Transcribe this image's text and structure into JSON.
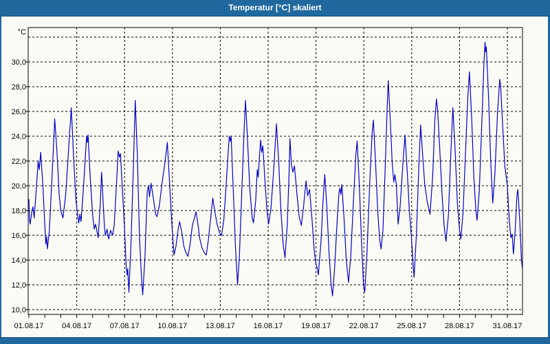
{
  "window": {
    "title": "Temperatur [°C] skaliert",
    "titlebar_color": "#1e689e",
    "background_color": "#fbfbf6"
  },
  "chart_data": {
    "type": "line",
    "title": "Temperatur [°C] skaliert",
    "grid": true,
    "legend_position": "none",
    "y_axis": {
      "unit_label": "°C",
      "min": 10,
      "max": 32,
      "tick_step": 2,
      "ticks": [
        {
          "value": 10,
          "label": "10,0"
        },
        {
          "value": 12,
          "label": "12,0"
        },
        {
          "value": 14,
          "label": "14,0"
        },
        {
          "value": 16,
          "label": "16,0"
        },
        {
          "value": 18,
          "label": "18,0"
        },
        {
          "value": 20,
          "label": "20,0"
        },
        {
          "value": 22,
          "label": "22,0"
        },
        {
          "value": 24,
          "label": "24,0"
        },
        {
          "value": 26,
          "label": "26,0"
        },
        {
          "value": 28,
          "label": "28,0"
        },
        {
          "value": 30,
          "label": "30,0"
        }
      ],
      "unlabeled_gridline": 32
    },
    "x_axis": {
      "unit": "date",
      "range_days": [
        1,
        32
      ],
      "minor_tick_every_days": 1,
      "ticks": [
        {
          "day": 1,
          "label": "01.08.17"
        },
        {
          "day": 4,
          "label": "04.08.17"
        },
        {
          "day": 7,
          "label": "07.08.17"
        },
        {
          "day": 10,
          "label": "10.08.17"
        },
        {
          "day": 13,
          "label": "13.08.17"
        },
        {
          "day": 16,
          "label": "16.08.17"
        },
        {
          "day": 19,
          "label": "19.08.17"
        },
        {
          "day": 22,
          "label": "22.08.17"
        },
        {
          "day": 25,
          "label": "25.08.17"
        },
        {
          "day": 28,
          "label": "28.08.17"
        },
        {
          "day": 31,
          "label": "31.08.17"
        }
      ]
    },
    "series": [
      {
        "name": "Temperatur",
        "color": "#0000c8",
        "points": [
          [
            1.0,
            18.9
          ],
          [
            1.04,
            17.2
          ],
          [
            1.08,
            16.9
          ],
          [
            1.18,
            17.9
          ],
          [
            1.26,
            18.3
          ],
          [
            1.33,
            17.4
          ],
          [
            1.45,
            19.4
          ],
          [
            1.58,
            22.0
          ],
          [
            1.65,
            21.3
          ],
          [
            1.74,
            22.7
          ],
          [
            1.88,
            20.0
          ],
          [
            2.0,
            16.8
          ],
          [
            2.06,
            15.3
          ],
          [
            2.11,
            15.9
          ],
          [
            2.16,
            14.9
          ],
          [
            2.28,
            16.3
          ],
          [
            2.45,
            20.6
          ],
          [
            2.62,
            25.4
          ],
          [
            2.76,
            22.8
          ],
          [
            2.9,
            19.3
          ],
          [
            3.0,
            18.0
          ],
          [
            3.07,
            17.7
          ],
          [
            3.14,
            17.4
          ],
          [
            3.3,
            19.2
          ],
          [
            3.46,
            22.3
          ],
          [
            3.55,
            24.3
          ],
          [
            3.6,
            25.0
          ],
          [
            3.66,
            26.3
          ],
          [
            3.8,
            22.4
          ],
          [
            3.95,
            18.9
          ],
          [
            4.07,
            17.5
          ],
          [
            4.13,
            17.0
          ],
          [
            4.2,
            17.7
          ],
          [
            4.27,
            17.1
          ],
          [
            4.42,
            19.8
          ],
          [
            4.55,
            22.6
          ],
          [
            4.62,
            24.0
          ],
          [
            4.67,
            23.5
          ],
          [
            4.71,
            24.1
          ],
          [
            4.85,
            20.6
          ],
          [
            5.0,
            17.6
          ],
          [
            5.1,
            16.5
          ],
          [
            5.18,
            16.9
          ],
          [
            5.27,
            16.3
          ],
          [
            5.35,
            15.8
          ],
          [
            5.48,
            18.6
          ],
          [
            5.56,
            21.1
          ],
          [
            5.65,
            18.8
          ],
          [
            5.74,
            16.6
          ],
          [
            5.8,
            16.0
          ],
          [
            5.9,
            16.5
          ],
          [
            6.0,
            15.7
          ],
          [
            6.12,
            16.4
          ],
          [
            6.25,
            16.0
          ],
          [
            6.35,
            16.8
          ],
          [
            6.48,
            19.8
          ],
          [
            6.6,
            22.8
          ],
          [
            6.68,
            22.3
          ],
          [
            6.74,
            22.6
          ],
          [
            6.85,
            20.0
          ],
          [
            7.0,
            16.5
          ],
          [
            7.1,
            13.5
          ],
          [
            7.16,
            12.8
          ],
          [
            7.2,
            13.3
          ],
          [
            7.27,
            11.4
          ],
          [
            7.4,
            15.3
          ],
          [
            7.55,
            21.5
          ],
          [
            7.67,
            26.9
          ],
          [
            7.8,
            22.5
          ],
          [
            7.93,
            16.0
          ],
          [
            8.05,
            12.8
          ],
          [
            8.14,
            11.2
          ],
          [
            8.28,
            14.3
          ],
          [
            8.42,
            19.5
          ],
          [
            8.5,
            20.0
          ],
          [
            8.56,
            19.1
          ],
          [
            8.66,
            20.2
          ],
          [
            8.8,
            19.0
          ],
          [
            8.95,
            17.7
          ],
          [
            9.04,
            17.5
          ],
          [
            9.18,
            18.4
          ],
          [
            9.35,
            20.2
          ],
          [
            9.52,
            21.8
          ],
          [
            9.68,
            23.5
          ],
          [
            9.82,
            20.3
          ],
          [
            9.95,
            17.2
          ],
          [
            10.1,
            14.4
          ],
          [
            10.22,
            15.1
          ],
          [
            10.35,
            16.4
          ],
          [
            10.45,
            17.1
          ],
          [
            10.58,
            16.3
          ],
          [
            10.72,
            15.1
          ],
          [
            10.85,
            14.6
          ],
          [
            10.97,
            14.3
          ],
          [
            11.1,
            15.2
          ],
          [
            11.25,
            16.8
          ],
          [
            11.4,
            17.5
          ],
          [
            11.48,
            17.9
          ],
          [
            11.6,
            16.9
          ],
          [
            11.72,
            15.7
          ],
          [
            11.85,
            15.0
          ],
          [
            12.0,
            14.6
          ],
          [
            12.12,
            14.4
          ],
          [
            12.25,
            15.6
          ],
          [
            12.4,
            17.4
          ],
          [
            12.53,
            19.0
          ],
          [
            12.66,
            17.9
          ],
          [
            12.8,
            16.9
          ],
          [
            12.95,
            16.2
          ],
          [
            13.08,
            16.0
          ],
          [
            13.22,
            17.2
          ],
          [
            13.38,
            20.3
          ],
          [
            13.5,
            22.8
          ],
          [
            13.57,
            24.0
          ],
          [
            13.63,
            23.6
          ],
          [
            13.68,
            24.0
          ],
          [
            13.82,
            19.5
          ],
          [
            13.95,
            15.2
          ],
          [
            14.08,
            12.0
          ],
          [
            14.2,
            14.3
          ],
          [
            14.35,
            19.5
          ],
          [
            14.48,
            24.0
          ],
          [
            14.58,
            26.9
          ],
          [
            14.7,
            24.0
          ],
          [
            14.85,
            19.8
          ],
          [
            15.0,
            17.4
          ],
          [
            15.08,
            17.0
          ],
          [
            15.22,
            18.8
          ],
          [
            15.32,
            21.3
          ],
          [
            15.38,
            20.7
          ],
          [
            15.47,
            22.6
          ],
          [
            15.53,
            23.7
          ],
          [
            15.6,
            22.7
          ],
          [
            15.67,
            23.2
          ],
          [
            15.8,
            20.4
          ],
          [
            15.93,
            17.9
          ],
          [
            16.03,
            16.9
          ],
          [
            16.18,
            18.2
          ],
          [
            16.35,
            21.3
          ],
          [
            16.52,
            25.0
          ],
          [
            16.66,
            22.0
          ],
          [
            16.8,
            18.0
          ],
          [
            16.95,
            15.2
          ],
          [
            17.06,
            14.2
          ],
          [
            17.2,
            16.8
          ],
          [
            17.3,
            20.5
          ],
          [
            17.37,
            23.8
          ],
          [
            17.46,
            21.7
          ],
          [
            17.55,
            21.1
          ],
          [
            17.65,
            21.6
          ],
          [
            17.8,
            19.4
          ],
          [
            17.95,
            17.5
          ],
          [
            18.08,
            16.8
          ],
          [
            18.22,
            18.3
          ],
          [
            18.38,
            20.4
          ],
          [
            18.48,
            19.2
          ],
          [
            18.6,
            19.7
          ],
          [
            18.75,
            17.3
          ],
          [
            18.9,
            14.6
          ],
          [
            19.0,
            13.7
          ],
          [
            19.07,
            13.4
          ],
          [
            19.15,
            12.8
          ],
          [
            19.32,
            15.6
          ],
          [
            19.45,
            18.9
          ],
          [
            19.55,
            20.9
          ],
          [
            19.68,
            18.3
          ],
          [
            19.82,
            14.6
          ],
          [
            19.95,
            12.0
          ],
          [
            20.04,
            11.1
          ],
          [
            20.18,
            13.6
          ],
          [
            20.32,
            17.0
          ],
          [
            20.44,
            19.4
          ],
          [
            20.5,
            19.8
          ],
          [
            20.56,
            19.3
          ],
          [
            20.62,
            20.1
          ],
          [
            20.76,
            17.4
          ],
          [
            20.9,
            14.0
          ],
          [
            21.04,
            12.2
          ],
          [
            21.18,
            14.3
          ],
          [
            21.35,
            18.8
          ],
          [
            21.5,
            22.5
          ],
          [
            21.58,
            23.6
          ],
          [
            21.72,
            20.0
          ],
          [
            21.86,
            15.3
          ],
          [
            21.98,
            12.0
          ],
          [
            22.06,
            11.4
          ],
          [
            22.2,
            14.6
          ],
          [
            22.38,
            20.5
          ],
          [
            22.52,
            24.3
          ],
          [
            22.6,
            25.3
          ],
          [
            22.74,
            21.7
          ],
          [
            22.88,
            17.8
          ],
          [
            23.0,
            15.6
          ],
          [
            23.08,
            14.9
          ],
          [
            23.2,
            16.4
          ],
          [
            23.35,
            21.8
          ],
          [
            23.46,
            26.2
          ],
          [
            23.53,
            28.5
          ],
          [
            23.66,
            25.3
          ],
          [
            23.78,
            21.8
          ],
          [
            23.88,
            20.3
          ],
          [
            23.95,
            20.9
          ],
          [
            24.04,
            20.1
          ],
          [
            24.15,
            16.9
          ],
          [
            24.28,
            18.4
          ],
          [
            24.44,
            21.6
          ],
          [
            24.58,
            24.1
          ],
          [
            24.72,
            21.2
          ],
          [
            24.86,
            17.8
          ],
          [
            24.98,
            16.0
          ],
          [
            25.08,
            13.8
          ],
          [
            25.15,
            12.6
          ],
          [
            25.3,
            16.2
          ],
          [
            25.44,
            21.2
          ],
          [
            25.56,
            24.9
          ],
          [
            25.68,
            22.6
          ],
          [
            25.82,
            20.1
          ],
          [
            25.98,
            18.7
          ],
          [
            26.15,
            17.7
          ],
          [
            26.32,
            20.8
          ],
          [
            26.45,
            25.2
          ],
          [
            26.55,
            27.0
          ],
          [
            26.63,
            26.1
          ],
          [
            26.76,
            23.0
          ],
          [
            26.9,
            19.4
          ],
          [
            27.04,
            16.7
          ],
          [
            27.15,
            15.5
          ],
          [
            27.3,
            17.6
          ],
          [
            27.45,
            22.4
          ],
          [
            27.58,
            26.3
          ],
          [
            27.72,
            23.0
          ],
          [
            27.86,
            18.7
          ],
          [
            28.0,
            16.4
          ],
          [
            28.08,
            15.7
          ],
          [
            28.22,
            17.8
          ],
          [
            28.38,
            22.8
          ],
          [
            28.52,
            27.2
          ],
          [
            28.62,
            29.2
          ],
          [
            28.76,
            25.6
          ],
          [
            28.9,
            20.6
          ],
          [
            29.02,
            18.1
          ],
          [
            29.1,
            17.2
          ],
          [
            29.24,
            19.6
          ],
          [
            29.4,
            25.2
          ],
          [
            29.52,
            29.6
          ],
          [
            29.6,
            31.6
          ],
          [
            29.64,
            30.8
          ],
          [
            29.68,
            31.2
          ],
          [
            29.82,
            27.2
          ],
          [
            29.96,
            21.8
          ],
          [
            30.08,
            18.6
          ],
          [
            30.22,
            21.0
          ],
          [
            30.38,
            25.8
          ],
          [
            30.52,
            28.6
          ],
          [
            30.58,
            28.0
          ],
          [
            30.7,
            25.0
          ],
          [
            30.84,
            21.6
          ],
          [
            31.0,
            20.0
          ],
          [
            31.12,
            17.2
          ],
          [
            31.22,
            15.8
          ],
          [
            31.3,
            16.1
          ],
          [
            31.38,
            14.5
          ],
          [
            31.5,
            16.6
          ],
          [
            31.6,
            19.2
          ],
          [
            31.66,
            19.7
          ],
          [
            31.78,
            17.1
          ],
          [
            31.88,
            14.1
          ],
          [
            31.93,
            13.4
          ]
        ]
      }
    ]
  }
}
